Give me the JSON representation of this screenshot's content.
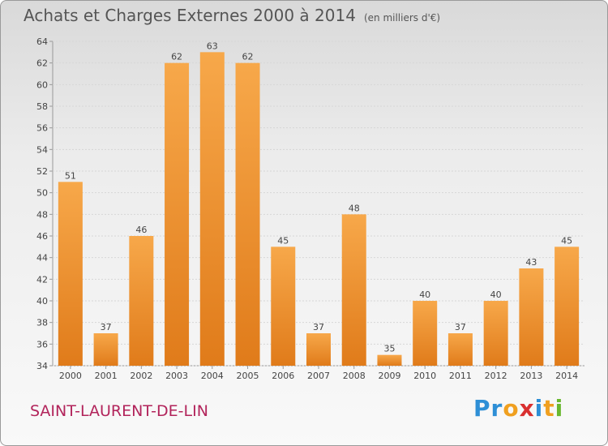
{
  "title": "Achats et Charges Externes 2000 à 2014",
  "subtitle": "(en milliers d'€)",
  "commune": "SAINT-LAURENT-DE-LIN",
  "logo": {
    "letters": [
      "P",
      "r",
      "o",
      "x",
      "i",
      "t",
      "i"
    ],
    "colors": [
      "#2e8fd6",
      "#2e8fd6",
      "#f0a020",
      "#d93030",
      "#2e8fd6",
      "#f0a020",
      "#6ab830"
    ]
  },
  "colors": {
    "bar_light": "#f7a84a",
    "bar_dark": "#e07b1a",
    "accent": "#b2245b"
  },
  "chart_data": {
    "type": "bar",
    "categories": [
      "2000",
      "2001",
      "2002",
      "2003",
      "2004",
      "2005",
      "2006",
      "2007",
      "2008",
      "2009",
      "2010",
      "2011",
      "2012",
      "2013",
      "2014"
    ],
    "values": [
      51,
      37,
      46,
      62,
      63,
      62,
      45,
      37,
      48,
      35,
      40,
      37,
      40,
      43,
      45
    ],
    "ylim": [
      34,
      64
    ],
    "yticks": [
      34,
      36,
      38,
      40,
      42,
      44,
      46,
      48,
      50,
      52,
      54,
      56,
      58,
      60,
      62,
      64
    ],
    "grid": true,
    "xlabel": "",
    "ylabel": ""
  }
}
